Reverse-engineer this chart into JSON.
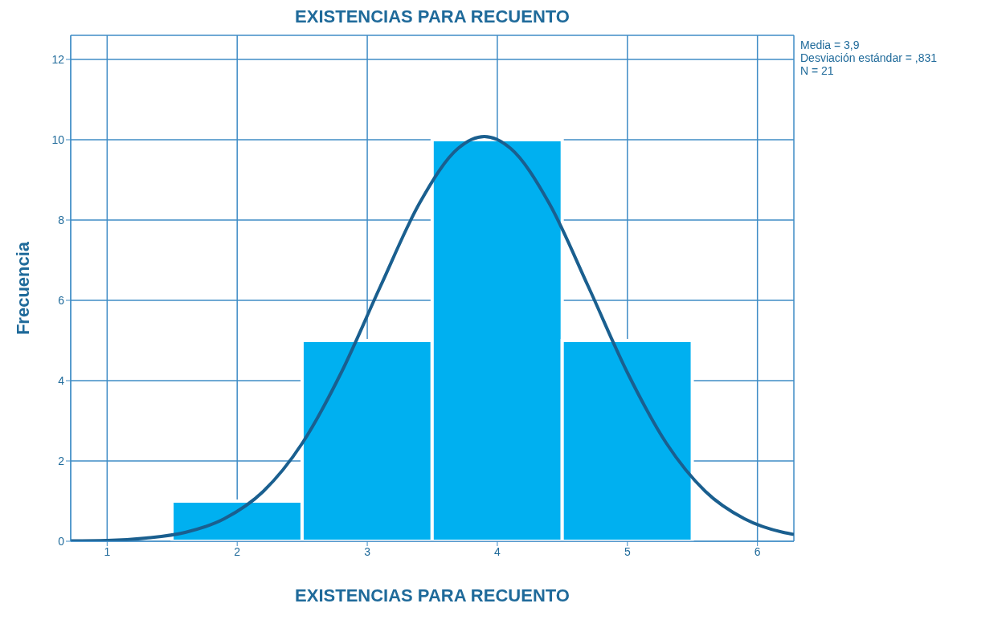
{
  "chart_data": {
    "type": "histogram",
    "title": "EXISTENCIAS PARA RECUENTO",
    "xlabel": "EXISTENCIAS PARA RECUENTO",
    "ylabel": "Frecuencia",
    "annotations": [
      "Media = 3,9",
      "Desviación estándar = ,831",
      "N = 21"
    ],
    "bins": [
      1.5,
      2.5,
      3.5,
      4.5,
      5.5
    ],
    "values": [
      1,
      5,
      10,
      5
    ],
    "color": "#00b0f0",
    "series": [
      {
        "type": "line",
        "color": "#1a5f8f",
        "x": [
          0.72,
          1.0,
          1.3,
          1.6,
          1.9,
          2.2,
          2.5,
          2.8,
          3.1,
          3.4,
          3.7,
          3.9,
          4.1,
          4.4,
          4.7,
          5.0,
          5.3,
          5.6,
          5.9,
          6.2,
          6.28
        ],
        "values": [
          0.01,
          0.02,
          0.08,
          0.22,
          0.56,
          1.24,
          2.44,
          4.2,
          6.34,
          8.41,
          9.79,
          10.08,
          9.79,
          8.41,
          6.34,
          4.2,
          2.44,
          1.24,
          0.56,
          0.22,
          0.17
        ]
      }
    ],
    "xlim": [
      0.72,
      6.28
    ],
    "xticks": [
      1,
      2,
      3,
      4,
      5,
      6
    ],
    "ylim": [
      0,
      12.6
    ],
    "yticks": [
      0,
      2,
      4,
      6,
      8,
      10,
      12
    ],
    "grid": true
  }
}
